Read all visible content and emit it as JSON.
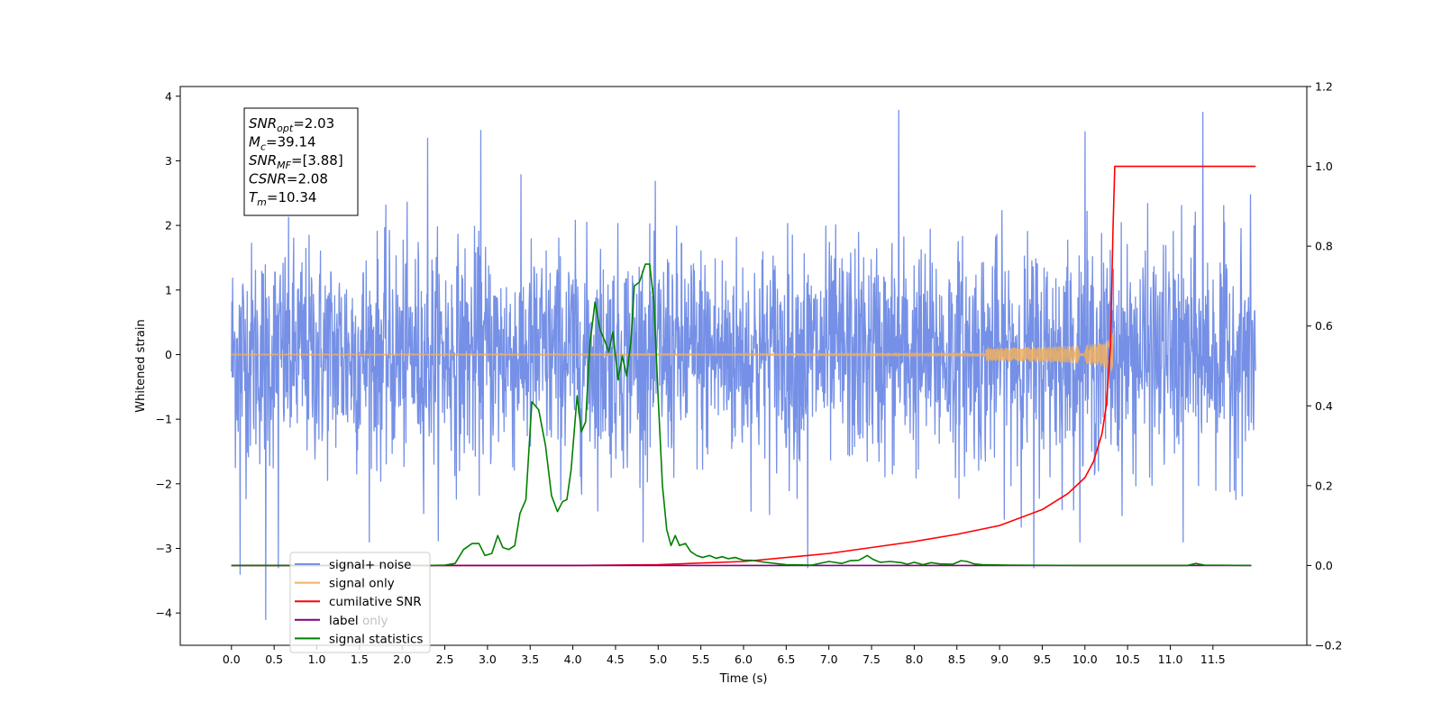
{
  "chart_data": {
    "type": "line",
    "xlabel": "Time (s)",
    "ylabel_left": "Whitened strain",
    "ylabel_right": "",
    "xlim": [
      -0.6,
      12.6
    ],
    "ylim_left": [
      -4.5,
      4.15
    ],
    "ylim_right": [
      -0.2,
      1.2
    ],
    "x_ticks": [
      0.0,
      0.5,
      1.0,
      1.5,
      2.0,
      2.5,
      3.0,
      3.5,
      4.0,
      4.5,
      5.0,
      5.5,
      6.0,
      6.5,
      7.0,
      7.5,
      8.0,
      8.5,
      9.0,
      9.5,
      10.0,
      10.5,
      11.0,
      11.5
    ],
    "x_tick_labels": [
      "0.0",
      "0.5",
      "1.0",
      "1.5",
      "2.0",
      "2.5",
      "3.0",
      "3.5",
      "4.0",
      "4.5",
      "5.0",
      "5.5",
      "6.0",
      "6.5",
      "7.0",
      "7.5",
      "8.0",
      "8.5",
      "9.0",
      "9.5",
      "10.0",
      "10.5",
      "11.0",
      "11.5"
    ],
    "y_ticks_left": [
      -4,
      -3,
      -2,
      -1,
      0,
      1,
      2,
      3,
      4
    ],
    "y_tick_labels_left": [
      "−4",
      "−3",
      "−2",
      "−1",
      "0",
      "1",
      "2",
      "3",
      "4"
    ],
    "y_ticks_right": [
      -0.2,
      0.0,
      0.2,
      0.4,
      0.6,
      0.8,
      1.0,
      1.2
    ],
    "y_tick_labels_right": [
      "−0.2",
      "0.0",
      "0.2",
      "0.4",
      "0.6",
      "0.8",
      "1.0",
      "1.2"
    ],
    "grid": false,
    "legend_position": "lower-left",
    "annotation": {
      "position": "upper-left",
      "lines": [
        {
          "base": "SNR",
          "sub": "opt",
          "value": "=2.03"
        },
        {
          "base": "M",
          "sub": "c",
          "value": "=39.14"
        },
        {
          "base": "SNR",
          "sub": "MF",
          "value": "=[3.88]"
        },
        {
          "base": "CSNR",
          "sub": "",
          "value": "=2.08"
        },
        {
          "base": "T",
          "sub": "m",
          "value": "=10.34"
        }
      ]
    },
    "series": [
      {
        "name": "signal+ noise",
        "axis": "left",
        "color": "#7590e6",
        "kind": "noise",
        "x_range": [
          0.0,
          12.0
        ],
        "approx_range": [
          -4.1,
          3.78
        ],
        "notable_peaks": [
          {
            "x": 0.1,
            "y": -3.4
          },
          {
            "x": 0.4,
            "y": -4.1
          },
          {
            "x": 0.55,
            "y": -3.3
          },
          {
            "x": 2.3,
            "y": 3.35
          },
          {
            "x": 2.92,
            "y": 3.47
          },
          {
            "x": 7.82,
            "y": 3.78
          },
          {
            "x": 10.0,
            "y": 3.45
          },
          {
            "x": 11.38,
            "y": 3.75
          },
          {
            "x": 9.4,
            "y": -3.3
          },
          {
            "x": 6.75,
            "y": -3.3
          },
          {
            "x": 11.15,
            "y": -2.9
          }
        ]
      },
      {
        "name": "signal only",
        "axis": "left",
        "color": "#f0b060",
        "kind": "chirp",
        "x_range": [
          0.0,
          10.34
        ],
        "merger_time": 10.34,
        "peak_amplitude": 0.45
      },
      {
        "name": "cumilative SNR",
        "axis": "right",
        "color": "#ff0000",
        "x": [
          0.0,
          4.0,
          5.0,
          6.0,
          7.0,
          8.0,
          8.5,
          9.0,
          9.5,
          9.8,
          10.0,
          10.1,
          10.2,
          10.25,
          10.3,
          10.33,
          10.35,
          10.4,
          12.0
        ],
        "y": [
          0.0,
          0.0,
          0.002,
          0.01,
          0.03,
          0.06,
          0.078,
          0.1,
          0.14,
          0.18,
          0.22,
          0.26,
          0.33,
          0.4,
          0.55,
          0.85,
          1.0,
          1.0,
          1.0
        ]
      },
      {
        "name": "label",
        "axis": "right",
        "color": "#800080",
        "x": [
          0.0,
          11.95
        ],
        "y": [
          0.0,
          0.0
        ]
      },
      {
        "name": "label only",
        "axis": "right",
        "color": "#800080",
        "hidden": true,
        "x": [],
        "y": []
      },
      {
        "name": "signal statistics",
        "axis": "right",
        "color": "#008000",
        "x": [
          0.0,
          2.3,
          2.5,
          2.62,
          2.72,
          2.82,
          2.9,
          2.97,
          3.05,
          3.12,
          3.18,
          3.25,
          3.32,
          3.38,
          3.45,
          3.52,
          3.6,
          3.68,
          3.75,
          3.82,
          3.88,
          3.93,
          3.98,
          4.05,
          4.1,
          4.15,
          4.2,
          4.26,
          4.32,
          4.38,
          4.42,
          4.47,
          4.53,
          4.58,
          4.63,
          4.68,
          4.72,
          4.78,
          4.85,
          4.9,
          4.95,
          5.0,
          5.05,
          5.1,
          5.15,
          5.2,
          5.25,
          5.32,
          5.38,
          5.45,
          5.52,
          5.6,
          5.68,
          5.75,
          5.82,
          5.9,
          6.0,
          6.1,
          6.25,
          6.5,
          6.8,
          7.0,
          7.15,
          7.25,
          7.35,
          7.45,
          7.52,
          7.6,
          7.72,
          7.85,
          7.92,
          8.0,
          8.1,
          8.2,
          8.3,
          8.45,
          8.55,
          8.62,
          8.7,
          8.8,
          9.1,
          10.0,
          11.2,
          11.3,
          11.4,
          11.95
        ],
        "y": [
          0.0,
          0.0,
          0.001,
          0.005,
          0.04,
          0.055,
          0.055,
          0.025,
          0.03,
          0.075,
          0.045,
          0.04,
          0.05,
          0.13,
          0.165,
          0.41,
          0.39,
          0.3,
          0.175,
          0.135,
          0.16,
          0.165,
          0.24,
          0.425,
          0.335,
          0.36,
          0.555,
          0.66,
          0.59,
          0.56,
          0.535,
          0.585,
          0.465,
          0.525,
          0.475,
          0.56,
          0.7,
          0.71,
          0.755,
          0.755,
          0.66,
          0.42,
          0.2,
          0.09,
          0.05,
          0.075,
          0.05,
          0.055,
          0.035,
          0.025,
          0.02,
          0.025,
          0.018,
          0.022,
          0.017,
          0.02,
          0.013,
          0.013,
          0.008,
          0.002,
          0.001,
          0.01,
          0.005,
          0.012,
          0.013,
          0.025,
          0.015,
          0.008,
          0.01,
          0.007,
          0.003,
          0.008,
          0.002,
          0.007,
          0.004,
          0.003,
          0.012,
          0.01,
          0.004,
          0.002,
          0.001,
          0.0,
          0.0,
          0.005,
          0.001,
          0.0
        ]
      }
    ]
  }
}
